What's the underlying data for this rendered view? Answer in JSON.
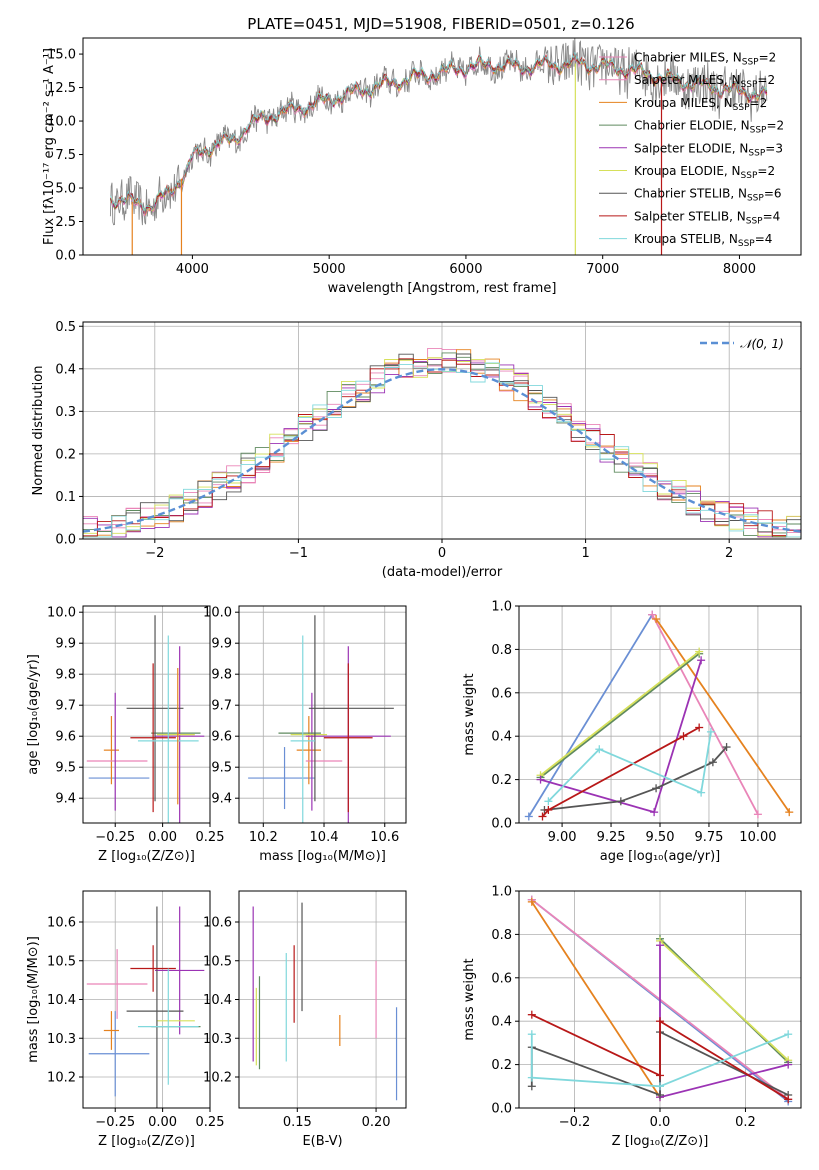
{
  "figure": {
    "title": "PLATE=0451, MJD=51908, FIBERID=0501, z=0.126"
  },
  "colors": {
    "palette": [
      "#6a8fd4",
      "#e5821f",
      "#5f8a5f",
      "#9b33b4",
      "#d6e05a",
      "#555555",
      "#b81818",
      "#80d8dc",
      "#e985b8",
      "#777777"
    ]
  },
  "models": [
    {
      "label": "Chabrier MILES, N",
      "sub": "SSP",
      "suffix": "=2",
      "color": "#e985b8"
    },
    {
      "label": "Salpeter MILES, N",
      "sub": "SSP",
      "suffix": "=2",
      "color": "#e985b8"
    },
    {
      "label": "Kroupa MILES, N",
      "sub": "SSP",
      "suffix": "=2",
      "color": "#e5821f"
    },
    {
      "label": "Chabrier ELODIE, N",
      "sub": "SSP",
      "suffix": "=2",
      "color": "#5f8a5f"
    },
    {
      "label": "Salpeter ELODIE, N",
      "sub": "SSP",
      "suffix": "=3",
      "color": "#9b33b4"
    },
    {
      "label": "Kroupa ELODIE, N",
      "sub": "SSP",
      "suffix": "=2",
      "color": "#d6e05a"
    },
    {
      "label": "Chabrier STELIB, N",
      "sub": "SSP",
      "suffix": "=6",
      "color": "#555555"
    },
    {
      "label": "Salpeter STELIB, N",
      "sub": "SSP",
      "suffix": "=4",
      "color": "#b81818"
    },
    {
      "label": "Kroupa STELIB, N",
      "sub": "SSP",
      "suffix": "=4",
      "color": "#80d8dc"
    }
  ],
  "chart_data": [
    {
      "id": "spectrum",
      "type": "line",
      "xlabel": "wavelength [Angstrom, rest frame]",
      "ylabel": "Flux [fλ10⁻¹⁷ erg cm⁻² s⁻¹ A⁻¹]",
      "xlim": [
        3200,
        8450
      ],
      "ylim": [
        0,
        16.2
      ],
      "xticks": [
        4000,
        5000,
        6000,
        7000,
        8000
      ],
      "yticks": [
        0.0,
        2.5,
        5.0,
        7.5,
        10.0,
        12.5,
        15.0
      ],
      "ytick_labels": [
        "0.0",
        "2.5",
        "5.0",
        "7.5",
        "10.0",
        "12.5",
        "15.0"
      ],
      "continuum": {
        "x": [
          3400,
          3600,
          3700,
          3800,
          3900,
          3950,
          4000,
          4100,
          4200,
          4300,
          4400,
          4500,
          4600,
          4800,
          5000,
          5200,
          5400,
          5600,
          5800,
          6000,
          6200,
          6400,
          6600,
          6800,
          7000,
          7200,
          7400,
          7600,
          7800,
          8000,
          8200
        ],
        "y": [
          4.2,
          3.9,
          3.6,
          4.4,
          5.5,
          6.0,
          7.3,
          7.9,
          8.4,
          8.5,
          9.6,
          10.1,
          10.5,
          11.0,
          11.6,
          12.2,
          12.7,
          13.2,
          13.6,
          14.0,
          14.2,
          14.0,
          14.2,
          14.3,
          14.1,
          13.8,
          13.3,
          12.9,
          12.5,
          12.2,
          11.9
        ]
      },
      "observed_noise_amplitude": 1.4,
      "legend_position": "upper right"
    },
    {
      "id": "residuals",
      "type": "histogram",
      "xlabel": "(data-model)/error",
      "ylabel": "Normed distribution",
      "xlim": [
        -2.5,
        2.5
      ],
      "ylim": [
        0,
        0.51
      ],
      "xticks": [
        -2,
        -1,
        0,
        1,
        2
      ],
      "xtick_labels": [
        "−2",
        "−1",
        "0",
        "1",
        "2"
      ],
      "yticks": [
        0.0,
        0.1,
        0.2,
        0.3,
        0.4,
        0.5
      ],
      "ytick_labels": [
        "0.0",
        "0.1",
        "0.2",
        "0.3",
        "0.4",
        "0.5"
      ],
      "bin_width": 0.1,
      "reference_label": "𝒩(0, 1)",
      "reference_color": "#5a8fd4",
      "legend_position": "upper right"
    },
    {
      "id": "age-vs-Z",
      "type": "errorbar",
      "xlabel": "Z [log₁₀(Z/Z⊙)]",
      "ylabel": "age  [log₁₀(age/yr)]",
      "xlim": [
        -0.42,
        0.25
      ],
      "ylim": [
        9.32,
        10.02
      ],
      "xticks": [
        -0.25,
        0.0,
        0.25
      ],
      "xtick_labels": [
        "−0.25",
        "0.00",
        "0.25"
      ],
      "yticks": [
        9.4,
        9.5,
        9.6,
        9.7,
        9.8,
        9.9,
        10.0
      ],
      "ytick_labels": [
        "9.4",
        "9.5",
        "9.6",
        "9.7",
        "9.8",
        "9.9",
        "10.0"
      ],
      "points": [
        {
          "x": -0.23,
          "y": 9.465,
          "xerr": 0.16,
          "yerr": 0.0,
          "color": "#6a8fd4"
        },
        {
          "x": -0.27,
          "y": 9.555,
          "xerr": 0.04,
          "yerr": 0.11,
          "color": "#e5821f"
        },
        {
          "x": -0.24,
          "y": 9.52,
          "xerr": 0.16,
          "yerr": 0.0,
          "color": "#e985b8"
        },
        {
          "x": -0.25,
          "y": 9.55,
          "xerr": 0.0,
          "yerr": 0.19,
          "color": "#9b33b4"
        },
        {
          "x": 0.07,
          "y": 9.61,
          "xerr": 0.13,
          "yerr": 0.0,
          "color": "#5f8a5f"
        },
        {
          "x": 0.09,
          "y": 9.6,
          "xerr": 0.13,
          "yerr": 0.29,
          "color": "#9b33b4"
        },
        {
          "x": 0.07,
          "y": 9.605,
          "xerr": 0.1,
          "yerr": 0.0,
          "color": "#d6e05a"
        },
        {
          "x": -0.04,
          "y": 9.69,
          "xerr": 0.15,
          "yerr": 0.3,
          "color": "#555555"
        },
        {
          "x": -0.05,
          "y": 9.595,
          "xerr": 0.12,
          "yerr": 0.24,
          "color": "#b81818"
        },
        {
          "x": 0.03,
          "y": 9.585,
          "xerr": 0.16,
          "yerr": 0.34,
          "color": "#80d8dc"
        },
        {
          "x": 0.08,
          "y": 9.6,
          "xerr": 0.0,
          "yerr": 0.22,
          "color": "#e5821f"
        }
      ]
    },
    {
      "id": "age-vs-mass",
      "type": "errorbar",
      "xlabel": "mass [log₁₀(M/M⊙)]",
      "ylabel": "",
      "xlim": [
        10.12,
        10.67
      ],
      "ylim": [
        9.32,
        10.02
      ],
      "xticks": [
        10.2,
        10.4,
        10.6
      ],
      "xtick_labels": [
        "10.2",
        "10.4",
        "10.6"
      ],
      "yticks": [
        9.4,
        9.5,
        9.6,
        9.7,
        9.8,
        9.9,
        10.0
      ],
      "ytick_labels": [
        "9.4",
        "9.5",
        "9.6",
        "9.7",
        "9.8",
        "9.9",
        "10.0"
      ],
      "points": [
        {
          "x": 10.26,
          "y": 9.465,
          "xerr": 0.11,
          "yerr": 0.0,
          "color": "#6a8fd4"
        },
        {
          "x": 10.27,
          "y": 9.465,
          "xerr": 0.0,
          "yerr": 0.1,
          "color": "#6a8fd4"
        },
        {
          "x": 10.35,
          "y": 9.555,
          "xerr": 0.04,
          "yerr": 0.11,
          "color": "#e5821f"
        },
        {
          "x": 10.4,
          "y": 9.52,
          "xerr": 0.06,
          "yerr": 0.0,
          "color": "#e985b8"
        },
        {
          "x": 10.36,
          "y": 9.55,
          "xerr": 0.0,
          "yerr": 0.19,
          "color": "#9b33b4"
        },
        {
          "x": 10.32,
          "y": 9.61,
          "xerr": 0.07,
          "yerr": 0.0,
          "color": "#5f8a5f"
        },
        {
          "x": 10.48,
          "y": 9.6,
          "xerr": 0.14,
          "yerr": 0.29,
          "color": "#9b33b4"
        },
        {
          "x": 10.35,
          "y": 9.605,
          "xerr": 0.06,
          "yerr": 0.0,
          "color": "#d6e05a"
        },
        {
          "x": 10.37,
          "y": 9.69,
          "xerr": 0.0,
          "yerr": 0.3,
          "color": "#555555"
        },
        {
          "x": 10.49,
          "y": 9.69,
          "xerr": 0.14,
          "yerr": 0.0,
          "color": "#555555"
        },
        {
          "x": 10.48,
          "y": 9.595,
          "xerr": 0.08,
          "yerr": 0.24,
          "color": "#b81818"
        },
        {
          "x": 10.33,
          "y": 9.585,
          "xerr": 0.04,
          "yerr": 0.34,
          "color": "#80d8dc"
        }
      ]
    },
    {
      "id": "weight-vs-age",
      "type": "line",
      "xlabel": "age  [log₁₀(age/yr)]",
      "ylabel": "mass weight",
      "xlim": [
        8.78,
        10.22
      ],
      "ylim": [
        0,
        1.0
      ],
      "xticks": [
        9.0,
        9.25,
        9.5,
        9.75,
        10.0
      ],
      "xtick_labels": [
        "9.00",
        "9.25",
        "9.50",
        "9.75",
        "10.00"
      ],
      "yticks": [
        0.0,
        0.2,
        0.4,
        0.6,
        0.8,
        1.0
      ],
      "ytick_labels": [
        "0.0",
        "0.2",
        "0.4",
        "0.6",
        "0.8",
        "1.0"
      ],
      "series": [
        {
          "color": "#6a8fd4",
          "x": [
            8.83,
            9.46
          ],
          "y": [
            0.03,
            0.96
          ]
        },
        {
          "color": "#e985b8",
          "x": [
            9.46,
            10.0
          ],
          "y": [
            0.96,
            0.04
          ]
        },
        {
          "color": "#e5821f",
          "x": [
            9.48,
            10.16
          ],
          "y": [
            0.94,
            0.05
          ]
        },
        {
          "color": "#5f8a5f",
          "x": [
            8.89,
            9.7
          ],
          "y": [
            0.21,
            0.78
          ]
        },
        {
          "color": "#d6e05a",
          "x": [
            8.89,
            9.7
          ],
          "y": [
            0.22,
            0.79
          ]
        },
        {
          "color": "#9b33b4",
          "x": [
            8.89,
            9.47,
            9.71
          ],
          "y": [
            0.2,
            0.05,
            0.75
          ]
        },
        {
          "color": "#555555",
          "x": [
            8.91,
            9.3,
            9.48,
            9.77,
            9.84
          ],
          "y": [
            0.06,
            0.1,
            0.16,
            0.28,
            0.35
          ]
        },
        {
          "color": "#b81818",
          "x": [
            8.9,
            8.93,
            9.62,
            9.7
          ],
          "y": [
            0.03,
            0.06,
            0.4,
            0.44
          ]
        },
        {
          "color": "#80d8dc",
          "x": [
            8.93,
            9.19,
            9.71,
            9.76
          ],
          "y": [
            0.1,
            0.34,
            0.14,
            0.42
          ]
        }
      ]
    },
    {
      "id": "mass-vs-Z",
      "type": "errorbar",
      "xlabel": "Z [log₁₀(Z/Z⊙)]",
      "ylabel": "mass [log₁₀(M/M⊙)]",
      "xlim": [
        -0.42,
        0.25
      ],
      "ylim": [
        10.12,
        10.68
      ],
      "xticks": [
        -0.25,
        0.0,
        0.25
      ],
      "xtick_labels": [
        "−0.25",
        "0.00",
        "0.25"
      ],
      "yticks": [
        10.2,
        10.3,
        10.4,
        10.5,
        10.6
      ],
      "ytick_labels": [
        "10.2",
        "10.3",
        "10.4",
        "10.5",
        "10.6"
      ],
      "points": [
        {
          "x": -0.23,
          "y": 10.26,
          "xerr": 0.16,
          "yerr": 0.0,
          "color": "#6a8fd4"
        },
        {
          "x": -0.25,
          "y": 10.26,
          "xerr": 0.0,
          "yerr": 0.11,
          "color": "#6a8fd4"
        },
        {
          "x": -0.27,
          "y": 10.32,
          "xerr": 0.04,
          "yerr": 0.05,
          "color": "#e5821f"
        },
        {
          "x": -0.24,
          "y": 10.44,
          "xerr": 0.16,
          "yerr": 0.0,
          "color": "#e985b8"
        },
        {
          "x": -0.24,
          "y": 10.44,
          "xerr": 0.0,
          "yerr": 0.09,
          "color": "#e985b8"
        },
        {
          "x": 0.07,
          "y": 10.33,
          "xerr": 0.13,
          "yerr": 0.0,
          "color": "#5f8a5f"
        },
        {
          "x": 0.09,
          "y": 10.475,
          "xerr": 0.13,
          "yerr": 0.165,
          "color": "#9b33b4"
        },
        {
          "x": 0.07,
          "y": 10.345,
          "xerr": 0.1,
          "yerr": 0.0,
          "color": "#d6e05a"
        },
        {
          "x": -0.04,
          "y": 10.37,
          "xerr": 0.15,
          "yerr": 0.0,
          "color": "#555555"
        },
        {
          "x": -0.03,
          "y": 10.37,
          "xerr": 0.0,
          "yerr": 0.27,
          "color": "#555555"
        },
        {
          "x": -0.05,
          "y": 10.48,
          "xerr": 0.12,
          "yerr": 0.06,
          "color": "#b81818"
        },
        {
          "x": 0.03,
          "y": 10.33,
          "xerr": 0.16,
          "yerr": 0.15,
          "color": "#80d8dc"
        }
      ]
    },
    {
      "id": "mass-vs-ebv",
      "type": "errorbar",
      "xlabel": "E(B-V)",
      "ylabel": "",
      "xlim": [
        0.113,
        0.219
      ],
      "ylim": [
        10.12,
        10.68
      ],
      "xticks": [
        0.15,
        0.2
      ],
      "xtick_labels": [
        "0.15",
        "0.20"
      ],
      "yticks": [
        10.2,
        10.3,
        10.4,
        10.5,
        10.6
      ],
      "ytick_labels": [
        "10.2",
        "10.3",
        "10.4",
        "10.5",
        "10.6"
      ],
      "points": [
        {
          "x": 0.122,
          "y": 10.44,
          "xerr": 0.0,
          "yerr": 0.2,
          "color": "#9b33b4"
        },
        {
          "x": 0.124,
          "y": 10.33,
          "xerr": 0.0,
          "yerr": 0.1,
          "color": "#d6e05a"
        },
        {
          "x": 0.126,
          "y": 10.34,
          "xerr": 0.0,
          "yerr": 0.12,
          "color": "#5f8a5f"
        },
        {
          "x": 0.143,
          "y": 10.38,
          "xerr": 0.0,
          "yerr": 0.14,
          "color": "#80d8dc"
        },
        {
          "x": 0.148,
          "y": 10.44,
          "xerr": 0.0,
          "yerr": 0.1,
          "color": "#b81818"
        },
        {
          "x": 0.153,
          "y": 10.51,
          "xerr": 0.0,
          "yerr": 0.14,
          "color": "#555555"
        },
        {
          "x": 0.177,
          "y": 10.32,
          "xerr": 0.0,
          "yerr": 0.04,
          "color": "#e5821f"
        },
        {
          "x": 0.2,
          "y": 10.4,
          "xerr": 0.0,
          "yerr": 0.1,
          "color": "#e985b8"
        },
        {
          "x": 0.213,
          "y": 10.26,
          "xerr": 0.0,
          "yerr": 0.12,
          "color": "#6a8fd4"
        }
      ]
    },
    {
      "id": "weight-vs-Z",
      "type": "line",
      "xlabel": "Z [log₁₀(Z/Z⊙)]",
      "ylabel": "mass weight",
      "xlim": [
        -0.33,
        0.33
      ],
      "ylim": [
        0,
        1.0
      ],
      "xticks": [
        -0.2,
        0.0,
        0.2
      ],
      "xtick_labels": [
        "−0.2",
        "0.0",
        "0.2"
      ],
      "yticks": [
        0.0,
        0.2,
        0.4,
        0.6,
        0.8,
        1.0
      ],
      "ytick_labels": [
        "0.0",
        "0.2",
        "0.4",
        "0.6",
        "0.8",
        "1.0"
      ],
      "series": [
        {
          "color": "#6a8fd4",
          "x": [
            -0.3,
            0.3
          ],
          "y": [
            0.96,
            0.03
          ]
        },
        {
          "color": "#e985b8",
          "x": [
            -0.3,
            0.3
          ],
          "y": [
            0.96,
            0.04
          ]
        },
        {
          "color": "#e5821f",
          "x": [
            -0.3,
            0.0
          ],
          "y": [
            0.95,
            0.05
          ]
        },
        {
          "color": "#5f8a5f",
          "x": [
            0.0,
            0.3
          ],
          "y": [
            0.78,
            0.21
          ]
        },
        {
          "color": "#d6e05a",
          "x": [
            0.0,
            0.3
          ],
          "y": [
            0.77,
            0.22
          ]
        },
        {
          "color": "#9b33b4",
          "x": [
            0.0,
            0.0,
            0.3
          ],
          "y": [
            0.75,
            0.05,
            0.2
          ]
        },
        {
          "color": "#555555",
          "x": [
            -0.3,
            -0.3,
            0.0,
            0.0,
            0.3
          ],
          "y": [
            0.1,
            0.28,
            0.06,
            0.35,
            0.06
          ]
        },
        {
          "color": "#b81818",
          "x": [
            -0.3,
            0.0,
            0.0,
            0.3
          ],
          "y": [
            0.43,
            0.15,
            0.4,
            0.04
          ]
        },
        {
          "color": "#80d8dc",
          "x": [
            -0.3,
            -0.3,
            0.0,
            0.3
          ],
          "y": [
            0.34,
            0.14,
            0.1,
            0.34
          ]
        }
      ]
    }
  ]
}
